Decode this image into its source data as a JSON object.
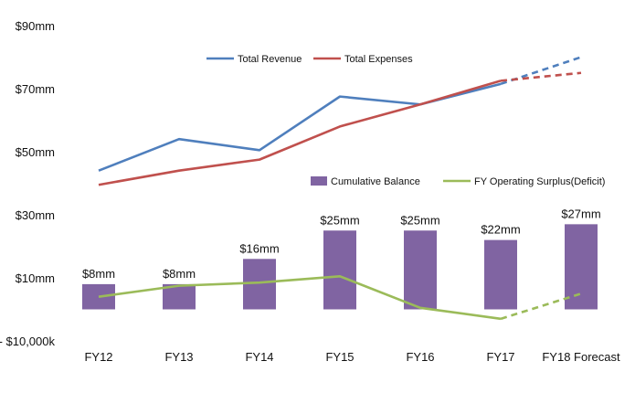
{
  "chart_data": {
    "type": "bar",
    "categories": [
      "FY12",
      "FY13",
      "FY14",
      "FY15",
      "FY16",
      "FY17",
      "FY18 Forecast"
    ],
    "y_ticks": [
      "$90mm",
      "$70mm",
      "$50mm",
      "$30mm",
      "$10mm",
      "- $10,000k"
    ],
    "ylim": [
      -10,
      90
    ],
    "grid": false,
    "colors": {
      "revenue": "#4F7FBD",
      "expenses": "#C0504D",
      "balance": "#8064A2",
      "surplus": "#9BBB59"
    },
    "series": [
      {
        "name": "Total Revenue",
        "type": "line",
        "values": [
          44,
          54,
          50.5,
          67.5,
          65,
          71.5,
          80
        ],
        "dashed_from_index": 5
      },
      {
        "name": "Total Expenses",
        "type": "line",
        "values": [
          39.5,
          44,
          47.5,
          58,
          65,
          72.5,
          75
        ],
        "dashed_from_index": 5
      },
      {
        "name": "Cumulative Balance",
        "type": "bar",
        "values": [
          8,
          8,
          16,
          25,
          25,
          22,
          27
        ],
        "labels": [
          "$8mm",
          "$8mm",
          "$16mm",
          "$25mm",
          "$25mm",
          "$22mm",
          "$27mm"
        ]
      },
      {
        "name": "FY Operating Surplus(Deficit)",
        "type": "line",
        "values": [
          4,
          7.5,
          8.5,
          10.5,
          0.5,
          -3,
          5
        ],
        "dashed_from_index": 5
      }
    ]
  }
}
